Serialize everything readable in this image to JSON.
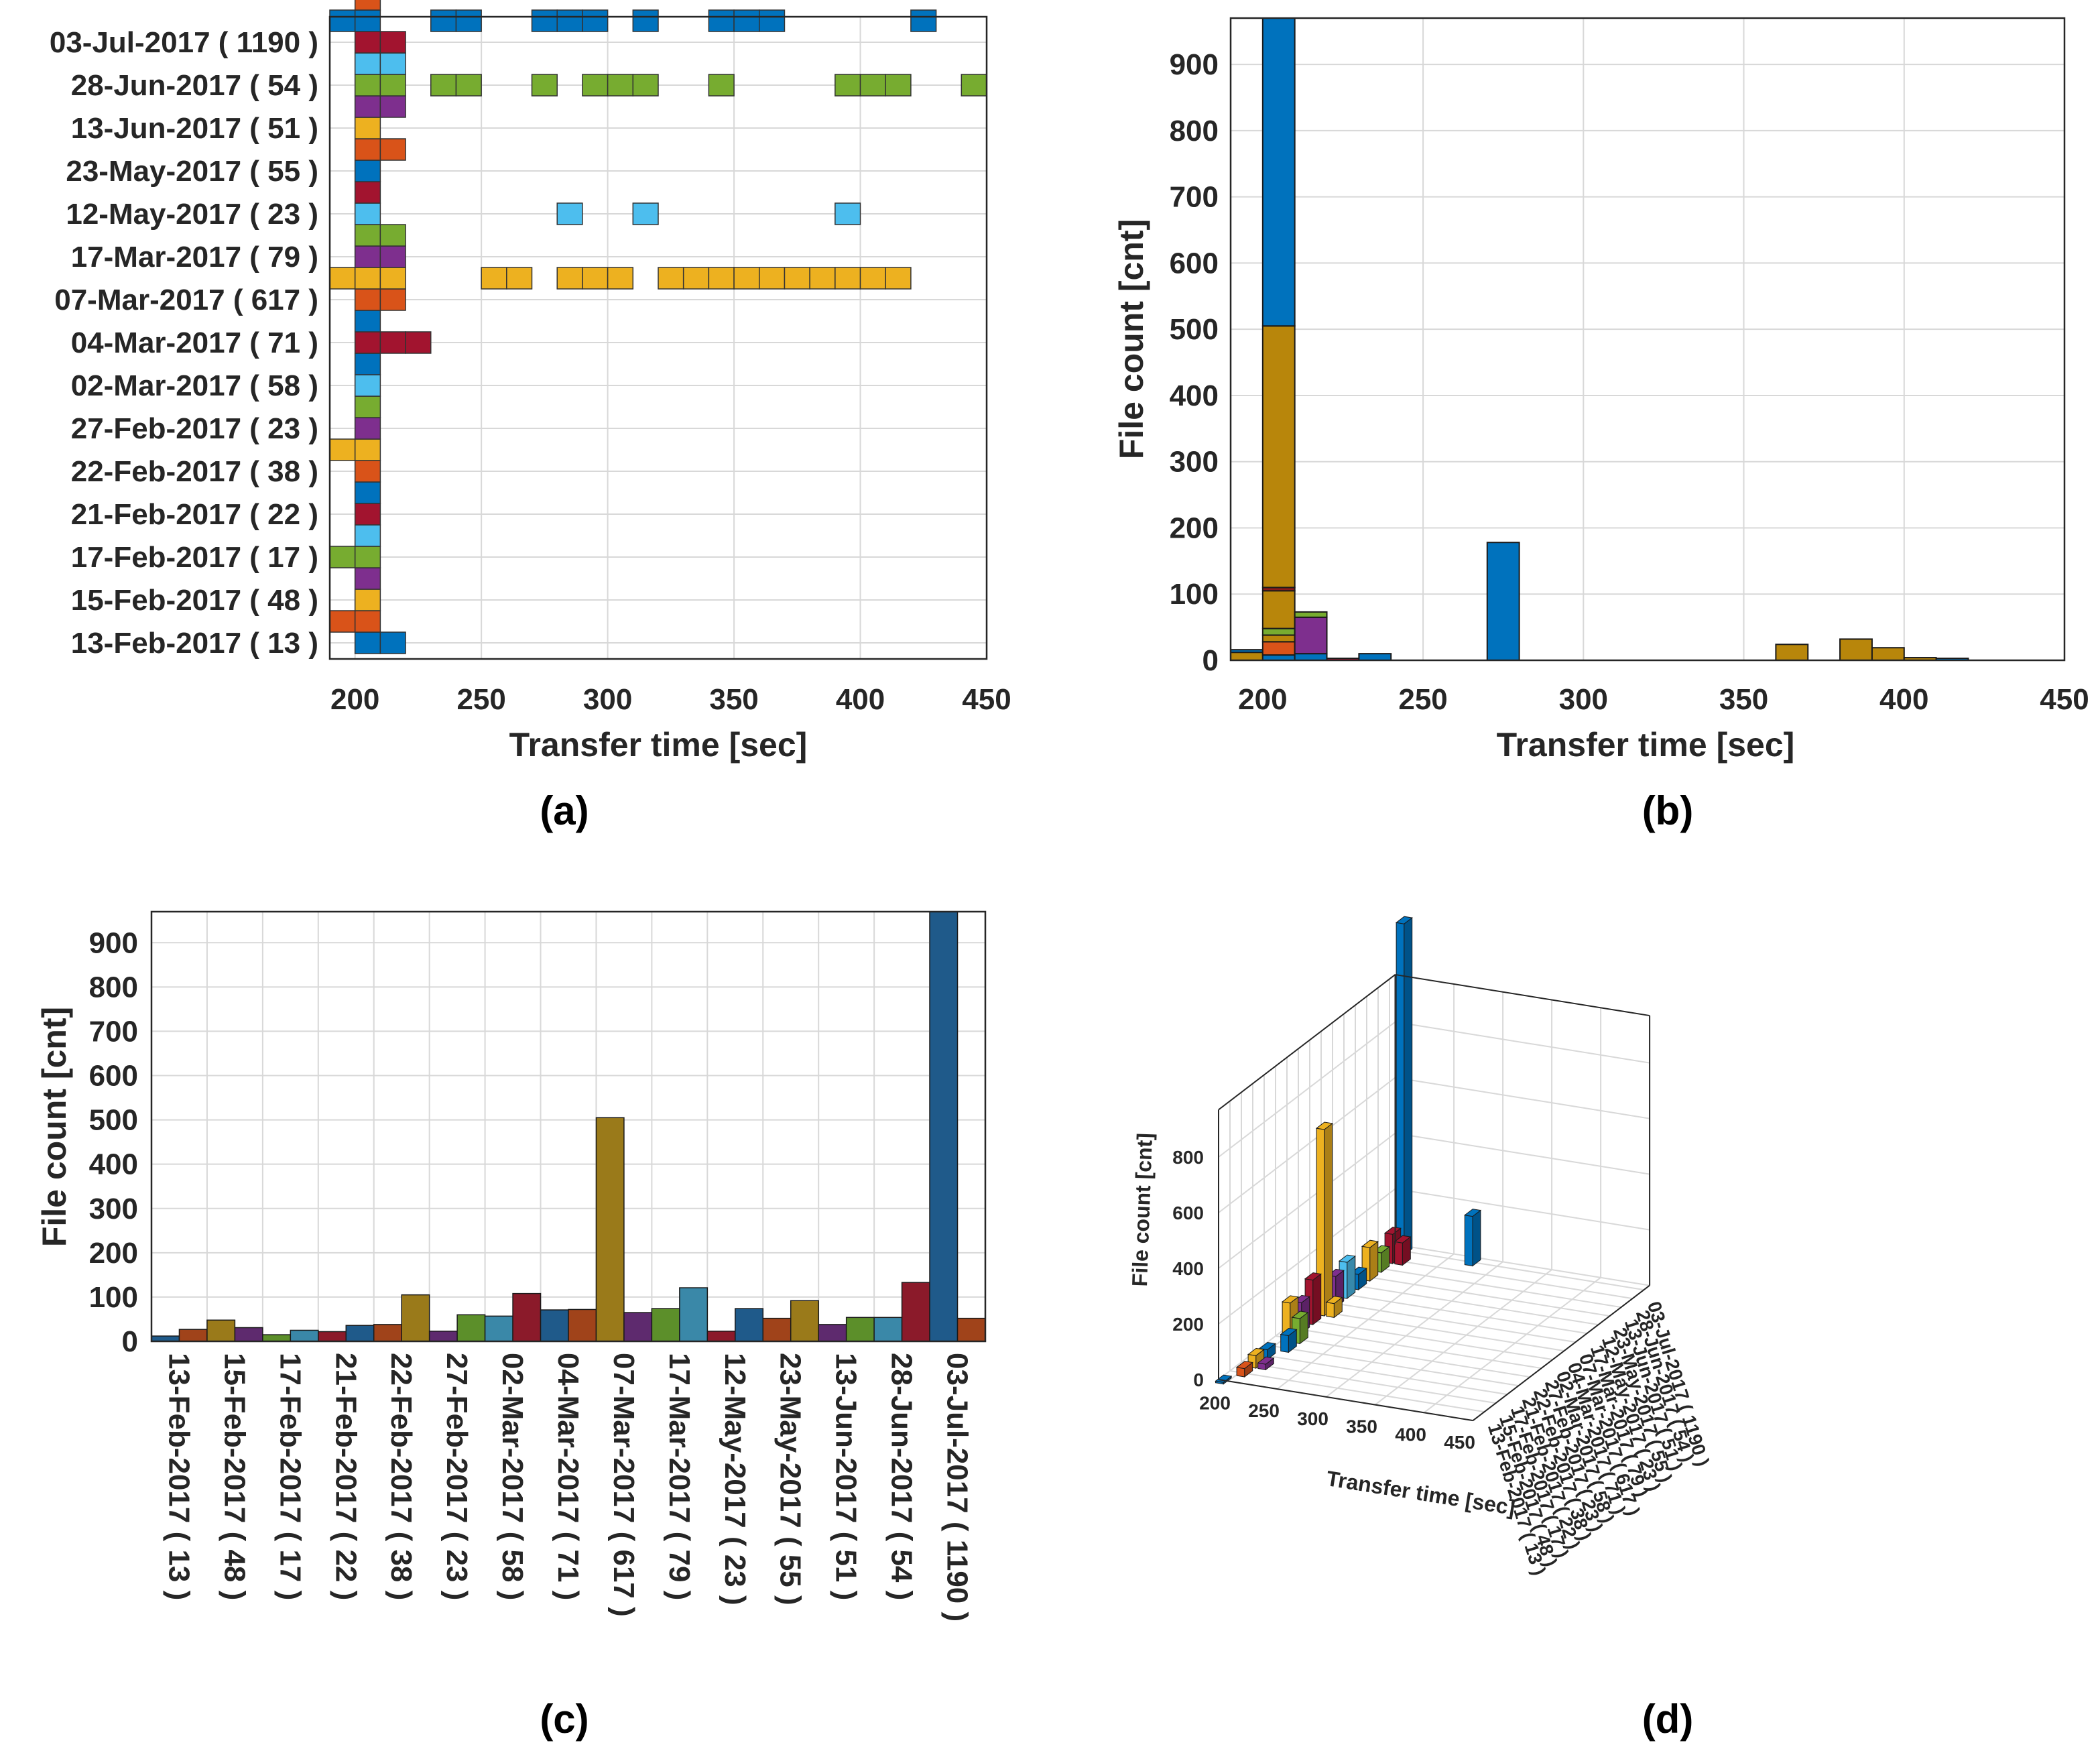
{
  "figure": {
    "panel_labels": [
      "(a)",
      "(b)",
      "(c)",
      "(d)"
    ]
  },
  "chart_data": [
    {
      "type": "scatter",
      "panel": "(a)",
      "xlabel": "Transfer time [sec]",
      "ylabel": "",
      "xlim": [
        190,
        450
      ],
      "xticks": [
        200,
        250,
        300,
        350,
        400,
        450
      ],
      "grid": true,
      "categories": [
        "13-Feb-2017 ( 13 )",
        "15-Feb-2017 ( 48 )",
        "17-Feb-2017 ( 17 )",
        "21-Feb-2017 ( 22 )",
        "22-Feb-2017 ( 38 )",
        "27-Feb-2017 ( 23 )",
        "02-Mar-2017 ( 58 )",
        "04-Mar-2017 ( 71 )",
        "07-Mar-2017 ( 617 )",
        "17-Mar-2017 ( 79 )",
        "12-May-2017 ( 23 )",
        "23-May-2017 ( 55 )",
        "13-Jun-2017 ( 51 )",
        "28-Jun-2017 ( 54 )",
        "03-Jul-2017 ( 1190 )"
      ],
      "rows": [
        {
          "row": 0,
          "color": "#0072BD",
          "x": [
            205,
            215
          ]
        },
        {
          "row": 0.5,
          "color": "#D95319",
          "x": [
            195,
            205
          ]
        },
        {
          "row": 1,
          "color": "#EDB120",
          "x": [
            205
          ]
        },
        {
          "row": 1.5,
          "color": "#7E2F8E",
          "x": [
            205
          ]
        },
        {
          "row": 2,
          "color": "#77AC30",
          "x": [
            195,
            205
          ]
        },
        {
          "row": 2.5,
          "color": "#4DBEEE",
          "x": [
            205
          ]
        },
        {
          "row": 3,
          "color": "#A2142F",
          "x": [
            205
          ]
        },
        {
          "row": 3.5,
          "color": "#0072BD",
          "x": [
            205
          ]
        },
        {
          "row": 4,
          "color": "#D95319",
          "x": [
            205
          ]
        },
        {
          "row": 4.5,
          "color": "#EDB120",
          "x": [
            195,
            205
          ]
        },
        {
          "row": 5,
          "color": "#7E2F8E",
          "x": [
            205
          ]
        },
        {
          "row": 5.5,
          "color": "#77AC30",
          "x": [
            205
          ]
        },
        {
          "row": 6,
          "color": "#4DBEEE",
          "x": [
            205
          ]
        },
        {
          "row": 6.5,
          "color": "#0072BD",
          "x": [
            205
          ]
        },
        {
          "row": 7,
          "color": "#A2142F",
          "x": [
            205,
            215,
            225
          ]
        },
        {
          "row": 7.5,
          "color": "#0072BD",
          "x": [
            205
          ]
        },
        {
          "row": 8,
          "color": "#D95319",
          "x": [
            205,
            215
          ]
        },
        {
          "row": 8.5,
          "color": "#EDB120",
          "x": [
            195,
            205,
            215,
            255,
            265,
            285,
            295,
            305,
            325,
            335,
            345,
            355,
            365,
            375,
            385,
            395,
            405,
            415
          ]
        },
        {
          "row": 9,
          "color": "#7E2F8E",
          "x": [
            205,
            215
          ]
        },
        {
          "row": 9.5,
          "color": "#77AC30",
          "x": [
            205,
            215
          ]
        },
        {
          "row": 10,
          "color": "#4DBEEE",
          "x": [
            205,
            285,
            315,
            395
          ]
        },
        {
          "row": 10.5,
          "color": "#A2142F",
          "x": [
            205
          ]
        },
        {
          "row": 11,
          "color": "#0072BD",
          "x": [
            205
          ]
        },
        {
          "row": 11.5,
          "color": "#D95319",
          "x": [
            205,
            215
          ]
        },
        {
          "row": 12,
          "color": "#EDB120",
          "x": [
            205
          ]
        },
        {
          "row": 12.5,
          "color": "#7E2F8E",
          "x": [
            205,
            215
          ]
        },
        {
          "row": 13,
          "color": "#77AC30",
          "x": [
            205,
            215,
            235,
            245,
            275,
            295,
            305,
            315,
            345,
            395,
            405,
            415,
            445
          ]
        },
        {
          "row": 13.5,
          "color": "#4DBEEE",
          "x": [
            205,
            215
          ]
        },
        {
          "row": 14,
          "color": "#A2142F",
          "x": [
            205,
            215
          ]
        },
        {
          "row": 14.5,
          "color": "#0072BD",
          "x": [
            195,
            205,
            235,
            245,
            275,
            285,
            295,
            315,
            345,
            355,
            365,
            425
          ]
        },
        {
          "row": 15,
          "color": "#D95319",
          "x": [
            205
          ]
        }
      ]
    },
    {
      "type": "bar",
      "panel": "(b)",
      "stacked": true,
      "xlabel": "Transfer time [sec]",
      "ylabel": "File count [cnt]",
      "xlim": [
        190,
        450
      ],
      "ylim": [
        0,
        970
      ],
      "xticks": [
        200,
        250,
        300,
        350,
        400,
        450
      ],
      "yticks": [
        0,
        100,
        200,
        300,
        400,
        500,
        600,
        700,
        800,
        900
      ],
      "grid": true,
      "bins": [
        {
          "x": 195,
          "layers": [
            {
              "color": "#B8860B",
              "from": 0,
              "to": 12
            },
            {
              "color": "#0072BD",
              "from": 12,
              "to": 16
            }
          ]
        },
        {
          "x": 205,
          "layers": [
            {
              "color": "#0072BD",
              "from": 0,
              "to": 8
            },
            {
              "color": "#D95319",
              "from": 8,
              "to": 28
            },
            {
              "color": "#B8860B",
              "from": 28,
              "to": 38
            },
            {
              "color": "#77AC30",
              "from": 38,
              "to": 48
            },
            {
              "color": "#B8860B",
              "from": 48,
              "to": 105
            },
            {
              "color": "#8B1A1A",
              "from": 105,
              "to": 110
            },
            {
              "color": "#B8860B",
              "from": 110,
              "to": 505
            },
            {
              "color": "#0072BD",
              "from": 505,
              "to": 970
            }
          ]
        },
        {
          "x": 215,
          "layers": [
            {
              "color": "#0072BD",
              "from": 0,
              "to": 10
            },
            {
              "color": "#7E2F8E",
              "from": 10,
              "to": 65
            },
            {
              "color": "#77AC30",
              "from": 65,
              "to": 73
            }
          ]
        },
        {
          "x": 225,
          "layers": [
            {
              "color": "#A2142F",
              "from": 0,
              "to": 3
            }
          ]
        },
        {
          "x": 235,
          "layers": [
            {
              "color": "#0072BD",
              "from": 0,
              "to": 10
            }
          ]
        },
        {
          "x": 275,
          "layers": [
            {
              "color": "#0072BD",
              "from": 0,
              "to": 178
            }
          ]
        },
        {
          "x": 365,
          "layers": [
            {
              "color": "#B8860B",
              "from": 0,
              "to": 24
            }
          ]
        },
        {
          "x": 385,
          "layers": [
            {
              "color": "#B8860B",
              "from": 0,
              "to": 32
            }
          ]
        },
        {
          "x": 395,
          "layers": [
            {
              "color": "#B8860B",
              "from": 0,
              "to": 19
            }
          ]
        },
        {
          "x": 405,
          "layers": [
            {
              "color": "#B8860B",
              "from": 0,
              "to": 4
            }
          ]
        },
        {
          "x": 415,
          "layers": [
            {
              "color": "#0072BD",
              "from": 0,
              "to": 3
            }
          ]
        }
      ]
    },
    {
      "type": "bar",
      "panel": "(c)",
      "xlabel": "",
      "ylabel": "File count [cnt]",
      "ylim": [
        0,
        970
      ],
      "yticks": [
        0,
        100,
        200,
        300,
        400,
        500,
        600,
        700,
        800,
        900
      ],
      "grid": true,
      "categories": [
        "13-Feb-2017 ( 13 )",
        "15-Feb-2017 ( 48 )",
        "17-Feb-2017 ( 17 )",
        "21-Feb-2017 ( 22 )",
        "22-Feb-2017 ( 38 )",
        "27-Feb-2017 ( 23 )",
        "02-Mar-2017 ( 58 )",
        "04-Mar-2017 ( 71 )",
        "07-Mar-2017 ( 617 )",
        "17-Mar-2017 ( 79 )",
        "12-May-2017 ( 23 )",
        "23-May-2017 ( 55 )",
        "13-Jun-2017 ( 51 )",
        "28-Jun-2017 ( 54 )",
        "03-Jul-2017 ( 1190 )"
      ],
      "pairs": [
        [
          {
            "color": "#1F5A8A",
            "value": 12
          },
          {
            "color": "#A0431A",
            "value": 27
          }
        ],
        [
          {
            "color": "#9A7A1A",
            "value": 48
          },
          {
            "color": "#5E2A6E",
            "value": 31
          }
        ],
        [
          {
            "color": "#5C8F2A",
            "value": 15
          },
          {
            "color": "#3A88A8",
            "value": 25
          }
        ],
        [
          {
            "color": "#8B1A2A",
            "value": 22
          },
          {
            "color": "#1F5A8A",
            "value": 36
          }
        ],
        [
          {
            "color": "#A0431A",
            "value": 38
          },
          {
            "color": "#9A7A1A",
            "value": 105
          }
        ],
        [
          {
            "color": "#5E2A6E",
            "value": 23
          },
          {
            "color": "#5C8F2A",
            "value": 60
          }
        ],
        [
          {
            "color": "#3A88A8",
            "value": 57
          },
          {
            "color": "#8B1A2A",
            "value": 108
          }
        ],
        [
          {
            "color": "#1F5A8A",
            "value": 71
          },
          {
            "color": "#A0431A",
            "value": 72
          }
        ],
        [
          {
            "color": "#9A7A1A",
            "value": 505
          },
          {
            "color": "#5E2A6E",
            "value": 65
          }
        ],
        [
          {
            "color": "#5C8F2A",
            "value": 74
          },
          {
            "color": "#3A88A8",
            "value": 121
          }
        ],
        [
          {
            "color": "#8B1A2A",
            "value": 23
          },
          {
            "color": "#1F5A8A",
            "value": 74
          }
        ],
        [
          {
            "color": "#A0431A",
            "value": 52
          },
          {
            "color": "#9A7A1A",
            "value": 92
          }
        ],
        [
          {
            "color": "#5E2A6E",
            "value": 38
          },
          {
            "color": "#5C8F2A",
            "value": 54
          }
        ],
        [
          {
            "color": "#3A88A8",
            "value": 54
          },
          {
            "color": "#8B1A2A",
            "value": 133
          }
        ],
        [
          {
            "color": "#1F5A8A",
            "value": 970
          },
          {
            "color": "#A0431A",
            "value": 52
          }
        ]
      ]
    },
    {
      "type": "bar",
      "panel": "(d)",
      "projection": "3d",
      "xlabel": "Transfer time [sec]",
      "ylabel": "",
      "zlabel": "File count [cnt]",
      "xlim": [
        190,
        450
      ],
      "zlim": [
        0,
        970
      ],
      "xticks": [
        200,
        250,
        300,
        350,
        400,
        450
      ],
      "zticks": [
        0,
        200,
        400,
        600,
        800
      ],
      "categories": [
        "13-Feb-2017 ( 13 )",
        "15-Feb-2017 ( 48 )",
        "17-Feb-2017 ( 17 )",
        "21-Feb-2017 ( 22 )",
        "22-Feb-2017 ( 38 )",
        "27-Feb-2017 ( 23 )",
        "02-Mar-2017 ( 58 )",
        "04-Mar-2017 ( 71 )",
        "07-Mar-2017 ( 617 )",
        "17-Mar-2017 ( 79 )",
        "12-May-2017 ( 23 )",
        "23-May-2017 ( 55 )",
        "13-Jun-2017 ( 51 )",
        "28-Jun-2017 ( 54 )",
        "03-Jul-2017 ( 1190 )"
      ],
      "bars": [
        {
          "x": 195,
          "row": 0,
          "z": 6,
          "color": "#0072BD"
        },
        {
          "x": 205,
          "row": 1,
          "z": 30,
          "color": "#D95319"
        },
        {
          "x": 205,
          "row": 2,
          "z": 45,
          "color": "#EDB120"
        },
        {
          "x": 215,
          "row": 2,
          "z": 20,
          "color": "#7E2F8E"
        },
        {
          "x": 205,
          "row": 3,
          "z": 35,
          "color": "#0072BD"
        },
        {
          "x": 215,
          "row": 4,
          "z": 60,
          "color": "#0072BD"
        },
        {
          "x": 205,
          "row": 5,
          "z": 140,
          "color": "#EDB120"
        },
        {
          "x": 215,
          "row": 5,
          "z": 90,
          "color": "#77AC30"
        },
        {
          "x": 205,
          "row": 6,
          "z": 110,
          "color": "#7E2F8E"
        },
        {
          "x": 205,
          "row": 7,
          "z": 160,
          "color": "#A2142F"
        },
        {
          "x": 205,
          "row": 8,
          "z": 670,
          "color": "#EDB120"
        },
        {
          "x": 215,
          "row": 8,
          "z": 50,
          "color": "#EDB120"
        },
        {
          "x": 205,
          "row": 9,
          "z": 110,
          "color": "#7E2F8E"
        },
        {
          "x": 205,
          "row": 10,
          "z": 130,
          "color": "#4DBEEE"
        },
        {
          "x": 205,
          "row": 11,
          "z": 55,
          "color": "#0072BD"
        },
        {
          "x": 205,
          "row": 12,
          "z": 120,
          "color": "#EDB120"
        },
        {
          "x": 205,
          "row": 13,
          "z": 70,
          "color": "#77AC30"
        },
        {
          "x": 205,
          "row": 14,
          "z": 105,
          "color": "#A2142F"
        },
        {
          "x": 215,
          "row": 14,
          "z": 80,
          "color": "#A2142F"
        },
        {
          "x": 205,
          "row": 15,
          "z": 1190,
          "color": "#0072BD"
        },
        {
          "x": 275,
          "row": 15,
          "z": 178,
          "color": "#0072BD"
        }
      ]
    }
  ]
}
